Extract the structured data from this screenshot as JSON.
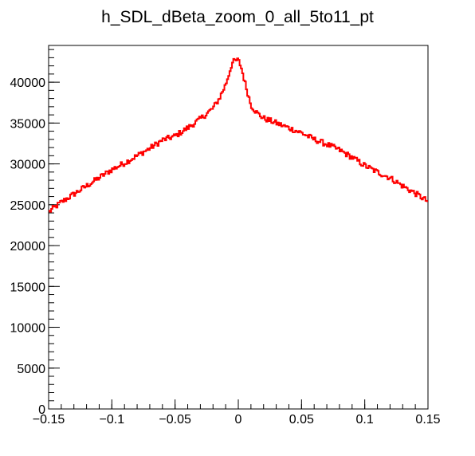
{
  "chart_data": {
    "type": "line",
    "title": "h_SDL_dBeta_zoom_0_all_5to11_pt",
    "xlabel": "",
    "ylabel": "",
    "xlim": [
      -0.15,
      0.15
    ],
    "ylim": [
      0,
      44500
    ],
    "grid": false,
    "legend": "none",
    "x_ticks": [
      -0.15,
      -0.1,
      -0.05,
      0,
      0.05,
      0.1,
      0.15
    ],
    "x_tick_labels": [
      "−0.15",
      "−0.1",
      "−0.05",
      "0",
      "0.05",
      "0.1",
      "0.15"
    ],
    "y_ticks": [
      0,
      5000,
      10000,
      15000,
      20000,
      25000,
      30000,
      35000,
      40000
    ],
    "y_tick_labels": [
      "0",
      "5000",
      "10000",
      "15000",
      "20000",
      "25000",
      "30000",
      "35000",
      "40000"
    ],
    "series": [
      {
        "color": "#ff0000",
        "x": [
          -0.15,
          -0.14,
          -0.13,
          -0.12,
          -0.11,
          -0.1,
          -0.09,
          -0.08,
          -0.07,
          -0.06,
          -0.05,
          -0.04,
          -0.03,
          -0.02,
          -0.015,
          -0.01,
          -0.007,
          -0.005,
          -0.003,
          0.0,
          0.002,
          0.004,
          0.006,
          0.008,
          0.01,
          0.015,
          0.02,
          0.03,
          0.04,
          0.05,
          0.06,
          0.07,
          0.08,
          0.09,
          0.1,
          0.11,
          0.12,
          0.13,
          0.14,
          0.15
        ],
        "y": [
          24100,
          25300,
          26300,
          27300,
          28300,
          29300,
          30100,
          31000,
          31900,
          32900,
          33400,
          34400,
          35500,
          36800,
          38000,
          39700,
          41200,
          42300,
          42600,
          42700,
          42000,
          40800,
          39500,
          38400,
          37200,
          36200,
          35600,
          35000,
          34400,
          33800,
          33000,
          32400,
          31700,
          30800,
          29800,
          29000,
          28300,
          27300,
          26400,
          25400
        ]
      }
    ]
  }
}
